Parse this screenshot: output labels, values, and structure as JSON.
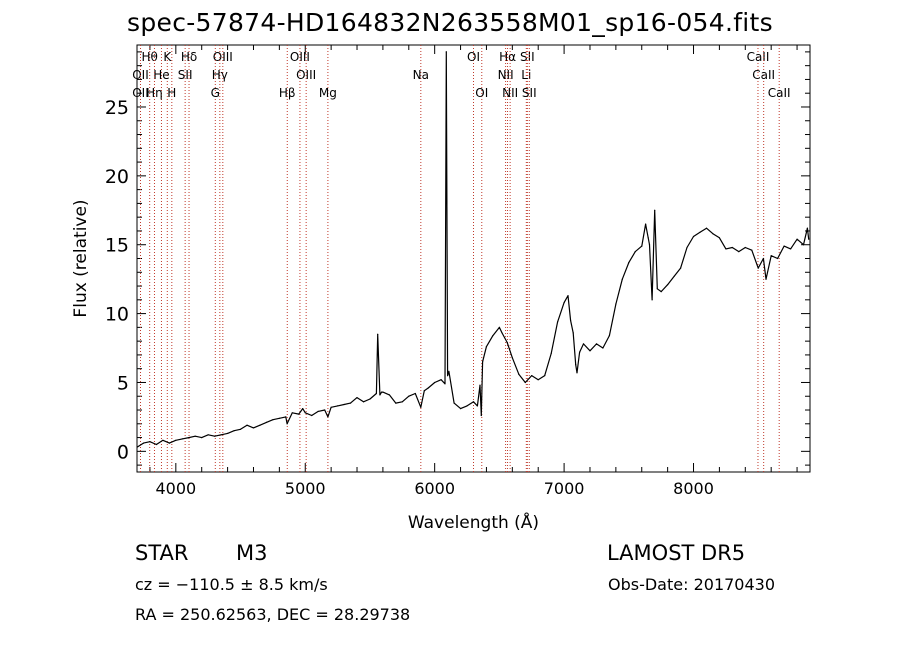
{
  "chart_data": {
    "type": "line",
    "title": "spec-57874-HD164832N263558M01_sp16-054.fits",
    "xlabel": "Wavelength (Å)",
    "ylabel": "Flux (relative)",
    "xlim": [
      3700,
      8900
    ],
    "ylim": [
      -1.5,
      29.5
    ],
    "xticks": [
      4000,
      5000,
      6000,
      7000,
      8000
    ],
    "yticks": [
      0,
      5,
      10,
      15,
      20,
      25
    ],
    "grid": false,
    "series": [
      {
        "x": [
          3700,
          3750,
          3800,
          3850,
          3900,
          3950,
          4000,
          4050,
          4100,
          4150,
          4200,
          4250,
          4300,
          4350,
          4400,
          4450,
          4500,
          4550,
          4600,
          4650,
          4700,
          4750,
          4800,
          4850,
          4860,
          4900,
          4950,
          4980,
          5000,
          5050,
          5100,
          5150,
          5175,
          5200,
          5250,
          5300,
          5350,
          5400,
          5450,
          5500,
          5550,
          5560,
          5577,
          5590,
          5600,
          5650,
          5700,
          5750,
          5800,
          5850,
          5893,
          5920,
          5950,
          6000,
          6050,
          6080,
          6090,
          6100,
          6110,
          6150,
          6200,
          6250,
          6300,
          6330,
          6350,
          6360,
          6370,
          6400,
          6450,
          6500,
          6520,
          6560,
          6600,
          6650,
          6700,
          6750,
          6800,
          6850,
          6900,
          6950,
          7000,
          7030,
          7050,
          7070,
          7090,
          7100,
          7120,
          7150,
          7200,
          7250,
          7300,
          7350,
          7400,
          7450,
          7500,
          7550,
          7600,
          7630,
          7650,
          7660,
          7680,
          7700,
          7720,
          7750,
          7800,
          7850,
          7900,
          7950,
          8000,
          8050,
          8100,
          8150,
          8200,
          8250,
          8300,
          8350,
          8400,
          8450,
          8500,
          8540,
          8560,
          8600,
          8650,
          8700,
          8750,
          8800,
          8850,
          8880,
          8890
        ],
        "y": [
          0.3,
          0.6,
          0.7,
          0.5,
          0.8,
          0.6,
          0.8,
          0.9,
          1.0,
          1.1,
          1.0,
          1.2,
          1.1,
          1.2,
          1.3,
          1.5,
          1.6,
          1.9,
          1.7,
          1.9,
          2.1,
          2.3,
          2.4,
          2.5,
          2.0,
          2.8,
          2.7,
          3.1,
          2.8,
          2.6,
          2.9,
          3.0,
          2.5,
          3.2,
          3.3,
          3.4,
          3.5,
          3.9,
          3.6,
          3.8,
          4.2,
          8.5,
          4.1,
          4.3,
          4.3,
          4.1,
          3.5,
          3.6,
          4.0,
          4.2,
          3.2,
          4.4,
          4.6,
          5.0,
          5.2,
          4.9,
          29.0,
          5.5,
          5.8,
          3.5,
          3.1,
          3.3,
          3.6,
          3.3,
          4.8,
          2.6,
          6.5,
          7.6,
          8.4,
          9.0,
          8.6,
          7.9,
          6.8,
          5.6,
          5.0,
          5.5,
          5.2,
          5.5,
          7.1,
          9.4,
          10.8,
          11.3,
          9.5,
          8.6,
          6.3,
          5.7,
          7.2,
          7.8,
          7.3,
          7.8,
          7.5,
          8.4,
          10.7,
          12.5,
          13.7,
          14.5,
          14.9,
          16.5,
          15.5,
          15.0,
          11.0,
          17.5,
          11.8,
          11.6,
          12.1,
          12.7,
          13.3,
          14.8,
          15.6,
          15.9,
          16.2,
          15.8,
          15.5,
          14.7,
          14.8,
          14.5,
          14.8,
          14.6,
          13.3,
          14.0,
          12.5,
          14.2,
          14.0,
          14.9,
          14.7,
          15.4,
          15.0,
          16.2,
          15.4
        ]
      }
    ],
    "line_markers": [
      {
        "label": "Hθ",
        "x": 3798,
        "row": 1
      },
      {
        "label": "OII",
        "x": 3727,
        "row": 2
      },
      {
        "label": "OII",
        "x": 3727,
        "row": 3
      },
      {
        "label": "K",
        "x": 3934,
        "row": 1
      },
      {
        "label": "He",
        "x": 3889,
        "row": 2
      },
      {
        "label": "Hη",
        "x": 3835,
        "row": 3
      },
      {
        "label": "H",
        "x": 3969,
        "row": 3
      },
      {
        "label": "Hδ",
        "x": 4102,
        "row": 1
      },
      {
        "label": "SII",
        "x": 4072,
        "row": 2
      },
      {
        "label": "OIII",
        "x": 4363,
        "row": 1
      },
      {
        "label": "Hγ",
        "x": 4340,
        "row": 2
      },
      {
        "label": "G",
        "x": 4305,
        "row": 3
      },
      {
        "label": "OIII",
        "x": 4959,
        "row": 1
      },
      {
        "label": "OIII",
        "x": 5007,
        "row": 2
      },
      {
        "label": "Hβ",
        "x": 4861,
        "row": 3
      },
      {
        "label": "Mg",
        "x": 5175,
        "row": 3
      },
      {
        "label": "Na",
        "x": 5893,
        "row": 2
      },
      {
        "label": "OI",
        "x": 6300,
        "row": 1
      },
      {
        "label": "OI",
        "x": 6364,
        "row": 3
      },
      {
        "label": "Hα",
        "x": 6563,
        "row": 1
      },
      {
        "label": "NII",
        "x": 6548,
        "row": 2
      },
      {
        "label": "NII",
        "x": 6583,
        "row": 3
      },
      {
        "label": "SII",
        "x": 6716,
        "row": 1
      },
      {
        "label": "Li",
        "x": 6708,
        "row": 2
      },
      {
        "label": "SII",
        "x": 6731,
        "row": 3
      },
      {
        "label": "CaII",
        "x": 8498,
        "row": 1
      },
      {
        "label": "CaII",
        "x": 8542,
        "row": 2
      },
      {
        "label": "CaII",
        "x": 8662,
        "row": 3
      }
    ]
  },
  "info": {
    "class": "STAR",
    "subclass": "M3",
    "survey": "LAMOST DR5",
    "cz": "cz = −110.5 ± 8.5 km/s",
    "obs_date": "Obs-Date: 20170430",
    "coords": "RA = 250.62563, DEC =  28.29738"
  },
  "colors": {
    "marker_line": "#c0392b",
    "spectrum": "#000000"
  }
}
